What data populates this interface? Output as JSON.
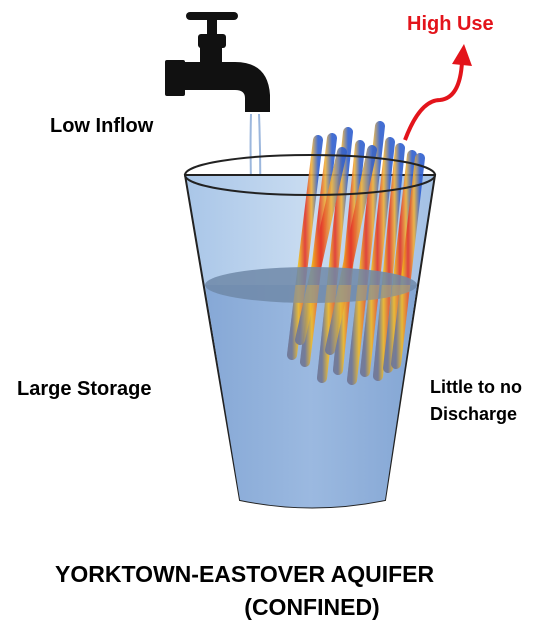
{
  "labels": {
    "high_use": "High Use",
    "low_inflow": "Low Inflow",
    "large_storage": "Large Storage",
    "discharge_line1": "Little to no",
    "discharge_line2": "Discharge"
  },
  "title": {
    "line1": "YORKTOWN-EASTOVER AQUIFER",
    "line2": "(CONFINED)"
  }
}
